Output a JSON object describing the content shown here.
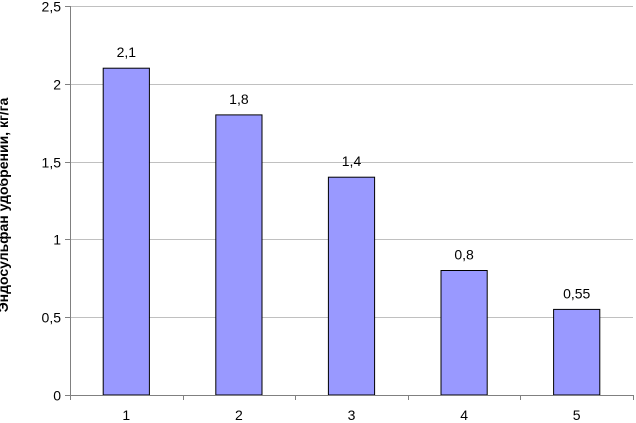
{
  "chart_data": {
    "type": "bar",
    "categories": [
      "1",
      "2",
      "3",
      "4",
      "5"
    ],
    "values": [
      2.1,
      1.8,
      1.4,
      0.8,
      0.55
    ],
    "data_labels": [
      "2,1",
      "1,8",
      "1,4",
      "0,8",
      "0,55"
    ],
    "title": "",
    "xlabel": "",
    "ylabel": "Эндосульфан удобрений, кг/га",
    "ylim": [
      0,
      2.5
    ],
    "yticks": [
      0,
      0.5,
      1,
      1.5,
      2,
      2.5
    ],
    "ytick_labels": [
      "0",
      "0,5",
      "1",
      "1,5",
      "2",
      "2,5"
    ],
    "grid": true,
    "legend": "none",
    "colors": {
      "bar_fill": "#9999ff",
      "bar_stroke": "#000000",
      "grid": "#c0c0c0",
      "axis": "#808080"
    }
  }
}
